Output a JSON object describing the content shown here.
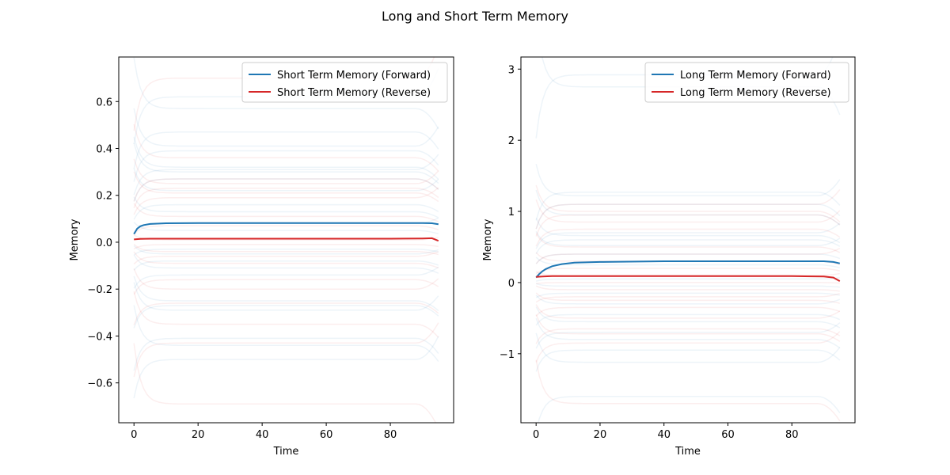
{
  "figure_title": "Long and Short Term Memory",
  "colors": {
    "forward": "#1f77b4",
    "reverse": "#d62728",
    "axes": "#000000",
    "legend_border": "#cccccc"
  },
  "chart_data": [
    {
      "type": "line",
      "title": "",
      "xlabel": "Time",
      "ylabel": "Memory",
      "xlim": [
        -4.75,
        99.75
      ],
      "ylim": [
        -0.77,
        0.79
      ],
      "x_ticks": [
        0,
        20,
        40,
        60,
        80
      ],
      "y_ticks": [
        -0.6,
        -0.4,
        -0.2,
        0.0,
        0.2,
        0.4,
        0.6
      ],
      "y_tick_labels": [
        "−0.6",
        "−0.4",
        "−0.2",
        "0.0",
        "0.2",
        "0.4",
        "0.6"
      ],
      "legend_position": "top-right",
      "series": [
        {
          "name": "Short Term Memory (Forward)",
          "color": "#1f77b4",
          "x": [
            0,
            1,
            2,
            3,
            5,
            10,
            20,
            40,
            60,
            80,
            90,
            93,
            95
          ],
          "y": [
            0.035,
            0.058,
            0.068,
            0.073,
            0.078,
            0.081,
            0.082,
            0.082,
            0.082,
            0.082,
            0.082,
            0.081,
            0.077
          ]
        },
        {
          "name": "Short Term Memory (Reverse)",
          "color": "#d62728",
          "x": [
            0,
            2,
            5,
            10,
            40,
            60,
            80,
            90,
            93,
            95
          ],
          "y": [
            0.012,
            0.014,
            0.015,
            0.015,
            0.015,
            0.015,
            0.015,
            0.016,
            0.017,
            0.006
          ]
        }
      ],
      "faint_forward_levels": [
        0.62,
        0.57,
        0.47,
        0.41,
        0.39,
        0.32,
        0.31,
        0.3,
        0.27,
        0.22,
        0.16,
        0.13,
        0.08,
        0.05,
        -0.03,
        -0.05,
        -0.08,
        -0.11,
        -0.14,
        -0.25,
        -0.27,
        -0.29,
        -0.41,
        -0.44,
        -0.5
      ],
      "faint_reverse_levels": [
        0.7,
        0.36,
        0.27,
        0.25,
        0.23,
        0.21,
        0.19,
        0.11,
        0.07,
        0.01,
        -0.01,
        -0.04,
        -0.06,
        -0.09,
        -0.16,
        -0.2,
        -0.26,
        -0.35,
        -0.43,
        -0.69
      ]
    },
    {
      "type": "line",
      "title": "",
      "xlabel": "Time",
      "ylabel": "Memory",
      "xlim": [
        -4.75,
        99.75
      ],
      "ylim": [
        -1.97,
        3.17
      ],
      "x_ticks": [
        0,
        20,
        40,
        60,
        80
      ],
      "y_ticks": [
        -1,
        0,
        1,
        2,
        3
      ],
      "y_tick_labels": [
        "−1",
        "0",
        "1",
        "2",
        "3"
      ],
      "legend_position": "top-right",
      "series": [
        {
          "name": "Long Term Memory (Forward)",
          "color": "#1f77b4",
          "x": [
            0,
            1,
            2,
            3,
            5,
            8,
            12,
            20,
            40,
            60,
            80,
            90,
            93,
            95
          ],
          "y": [
            0.07,
            0.12,
            0.16,
            0.19,
            0.23,
            0.26,
            0.28,
            0.29,
            0.3,
            0.3,
            0.3,
            0.3,
            0.29,
            0.27
          ]
        },
        {
          "name": "Long Term Memory (Reverse)",
          "color": "#d62728",
          "x": [
            0,
            2,
            5,
            10,
            40,
            60,
            80,
            90,
            93,
            95
          ],
          "y": [
            0.08,
            0.085,
            0.09,
            0.09,
            0.09,
            0.09,
            0.09,
            0.085,
            0.07,
            0.02
          ]
        }
      ],
      "faint_forward_levels": [
        2.92,
        2.75,
        1.27,
        1.22,
        1.1,
        0.95,
        0.7,
        0.66,
        0.6,
        0.52,
        0.4,
        0.25,
        0.05,
        -0.05,
        -0.15,
        -0.3,
        -0.45,
        -0.55,
        -0.7,
        -0.8,
        -0.95,
        -1.12,
        -1.6
      ],
      "faint_reverse_levels": [
        1.1,
        1.0,
        0.95,
        0.85,
        0.75,
        0.5,
        0.4,
        0.3,
        0.2,
        0.1,
        0.0,
        -0.1,
        -0.2,
        -0.25,
        -0.35,
        -0.5,
        -0.65,
        -0.72,
        -0.85,
        -1.7
      ]
    }
  ]
}
